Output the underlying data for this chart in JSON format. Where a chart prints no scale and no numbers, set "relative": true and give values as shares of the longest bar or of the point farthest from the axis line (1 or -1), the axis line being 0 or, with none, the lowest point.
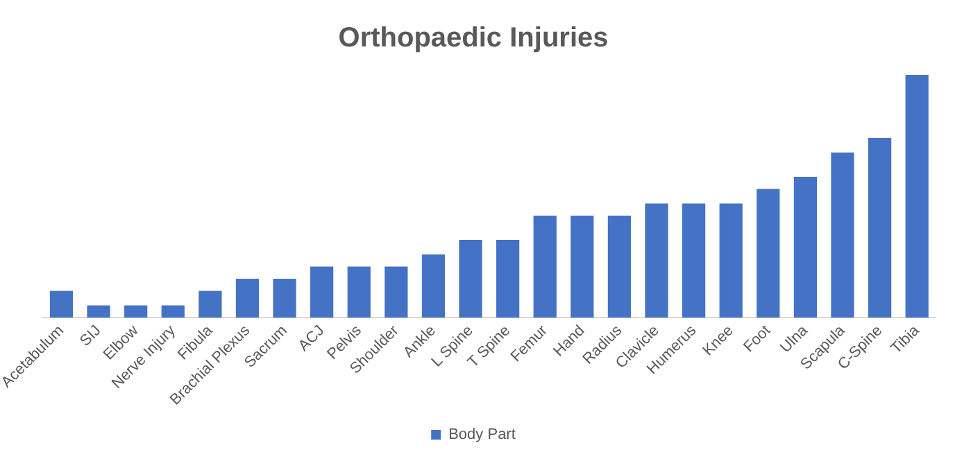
{
  "chart_data": {
    "type": "bar",
    "title": "Orthopaedic Injuries",
    "relative": true,
    "legend": "bottom",
    "grid": false,
    "categories": [
      "Acetabulum",
      "SIJ",
      "Elbow",
      "Nerve Injury",
      "Fibula",
      "Brachial Plexus",
      "Sacrum",
      "ACJ",
      "Pelvis",
      "Shoulder",
      "Ankle",
      "L Spine",
      "T Spine",
      "Femur",
      "Hand",
      "Radius",
      "Clavicle",
      "Humerus",
      "Knee",
      "Foot",
      "Ulna",
      "Scapula",
      "C-Spine",
      "Tibia"
    ],
    "series": [
      {
        "name": "Body Part",
        "color": "#4472c4",
        "values": [
          0.11,
          0.05,
          0.05,
          0.05,
          0.11,
          0.16,
          0.16,
          0.21,
          0.21,
          0.21,
          0.26,
          0.32,
          0.32,
          0.42,
          0.42,
          0.42,
          0.47,
          0.47,
          0.47,
          0.53,
          0.58,
          0.68,
          0.74,
          1
        ]
      }
    ]
  }
}
